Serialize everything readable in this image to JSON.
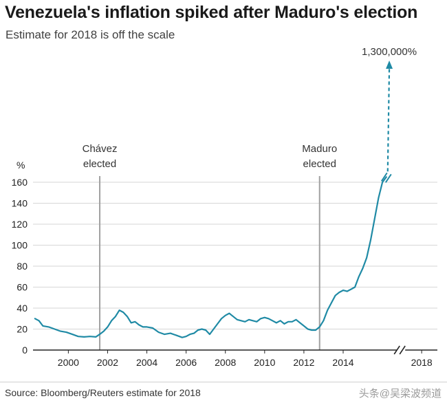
{
  "header": {
    "title": "Venezuela's inflation spiked after Maduro's election",
    "subtitle": "Estimate for 2018 is off the scale"
  },
  "footer": {
    "source": "Source: Bloomberg/Reuters estimate for 2018",
    "watermark": "头条@吴梁波频道"
  },
  "colors": {
    "line": "#1f8aa5",
    "event_line": "#a0a0a0",
    "grid": "#d6d6d6",
    "axis": "#222222"
  },
  "chart_data": {
    "type": "line",
    "title": "Venezuela's inflation spiked after Maduro's election",
    "subtitle": "Estimate for 2018 is off the scale",
    "ylabel": "%",
    "xlabel": "",
    "xlim": [
      1998.2,
      2018.8
    ],
    "ylim": [
      0,
      160
    ],
    "yticks": [
      0,
      20,
      40,
      60,
      80,
      100,
      120,
      140,
      160
    ],
    "xticks": [
      2000,
      2002,
      2004,
      2006,
      2008,
      2010,
      2012,
      2014,
      2018
    ],
    "grid": true,
    "axis_break": "between 2016 and 2018",
    "events": [
      {
        "x": 2001.6,
        "label": [
          "Chávez",
          "elected"
        ]
      },
      {
        "x": 2012.8,
        "label": [
          "Maduro",
          "elected"
        ]
      }
    ],
    "estimate": {
      "label": "1,300,000%",
      "value": 1300000,
      "year": 2018,
      "style": "dashed arrow"
    },
    "series": [
      {
        "x": [
          1998.3,
          1998.5,
          1998.7,
          1999.0,
          1999.3,
          1999.6,
          1999.9,
          2000.2,
          2000.5,
          2000.8,
          2001.1,
          2001.4,
          2001.6,
          2001.8,
          2002.0,
          2002.2,
          2002.4,
          2002.6,
          2002.8,
          2003.0,
          2003.2,
          2003.4,
          2003.6,
          2003.8,
          2004.0,
          2004.3,
          2004.6,
          2004.9,
          2005.2,
          2005.5,
          2005.8,
          2006.0,
          2006.2,
          2006.4,
          2006.6,
          2006.8,
          2007.0,
          2007.2,
          2007.4,
          2007.6,
          2007.8,
          2008.0,
          2008.2,
          2008.4,
          2008.6,
          2008.8,
          2009.0,
          2009.2,
          2009.4,
          2009.6,
          2009.8,
          2010.0,
          2010.2,
          2010.4,
          2010.6,
          2010.8,
          2011.0,
          2011.2,
          2011.4,
          2011.6,
          2011.8,
          2012.0,
          2012.2,
          2012.4,
          2012.6,
          2012.8,
          2013.0,
          2013.2,
          2013.4,
          2013.6,
          2013.8,
          2014.0,
          2014.2,
          2014.4,
          2014.6,
          2014.8,
          2015.0,
          2015.2,
          2015.4,
          2015.6,
          2015.8,
          2016.0,
          2016.2
        ],
        "y": [
          30,
          28,
          23,
          22,
          20,
          18,
          17,
          15,
          13,
          12.5,
          13,
          12.5,
          15,
          18,
          22,
          28,
          32,
          38,
          36,
          32,
          26,
          27,
          24,
          22,
          22,
          21,
          17,
          15,
          16,
          14,
          12,
          13,
          15,
          16,
          19,
          20,
          19,
          15,
          20,
          25,
          30,
          33,
          35,
          32,
          29,
          28,
          27,
          29,
          28,
          27,
          30,
          31,
          30,
          28,
          26,
          28,
          25,
          27,
          27,
          29,
          26,
          23,
          20,
          19,
          19,
          22,
          28,
          38,
          45,
          52,
          55,
          57,
          56,
          58,
          60,
          70,
          78,
          88,
          105,
          125,
          145,
          160,
          165
        ]
      }
    ]
  }
}
